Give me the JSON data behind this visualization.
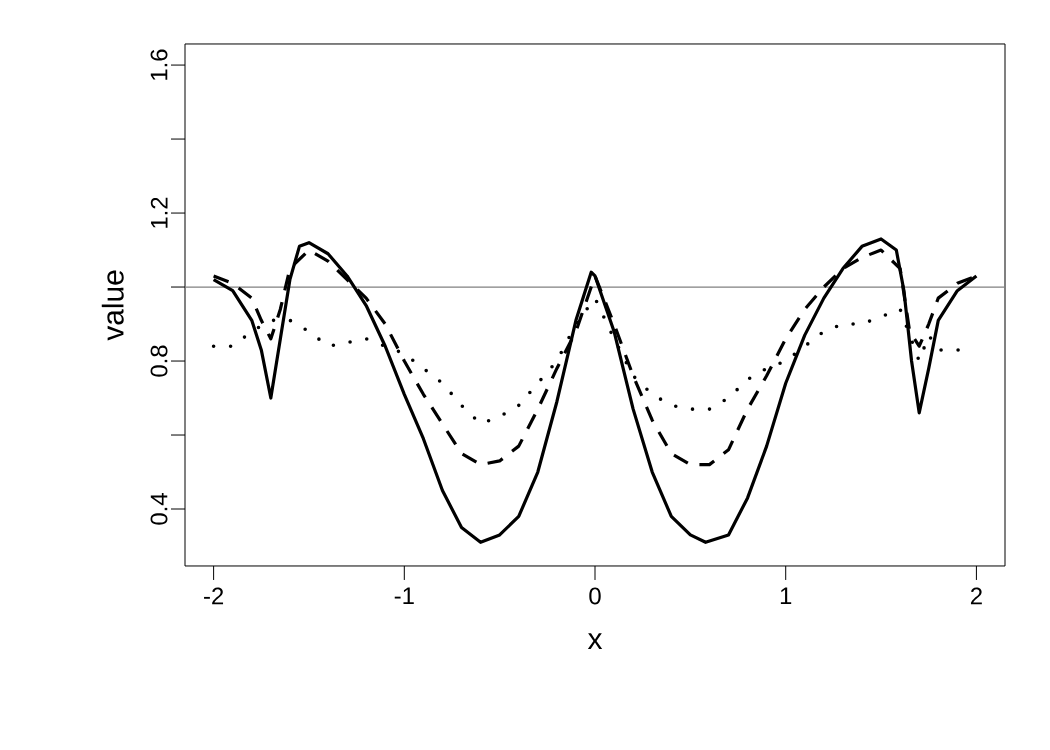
{
  "chart_data": {
    "type": "line",
    "xlabel": "x",
    "ylabel": "value",
    "xlim": [
      -2.15,
      2.15
    ],
    "ylim": [
      0.246,
      1.657
    ],
    "xticks": [
      -2,
      -1,
      0,
      1,
      2
    ],
    "yticks": [
      0.4,
      {
        "value": 0.6,
        "label": null
      },
      0.8,
      {
        "value": 1.0,
        "label": null
      },
      1.2,
      {
        "value": 1.4,
        "label": null
      },
      1.6
    ],
    "ref_lines": [
      {
        "axis": "y",
        "value": 1.0,
        "color": "#808080"
      }
    ],
    "series": [
      {
        "color": "#000000",
        "line_style": "solid",
        "x": [
          -2,
          -1.9,
          -1.8,
          -1.75,
          -1.7,
          -1.65,
          -1.6,
          -1.55,
          -1.5,
          -1.4,
          -1.3,
          -1.2,
          -1.1,
          -1.0,
          -0.9,
          -0.8,
          -0.7,
          -0.6,
          -0.5,
          -0.4,
          -0.3,
          -0.2,
          -0.1,
          -0.02,
          0,
          0.1,
          0.2,
          0.3,
          0.4,
          0.5,
          0.58,
          0.7,
          0.8,
          0.9,
          1.0,
          1.1,
          1.2,
          1.3,
          1.4,
          1.5,
          1.58,
          1.62,
          1.66,
          1.7,
          1.75,
          1.8,
          1.9,
          2.0
        ],
        "values": [
          1.02,
          0.99,
          0.91,
          0.83,
          0.7,
          0.86,
          1.02,
          1.11,
          1.12,
          1.09,
          1.03,
          0.95,
          0.84,
          0.71,
          0.59,
          0.45,
          0.35,
          0.31,
          0.33,
          0.38,
          0.5,
          0.69,
          0.91,
          1.04,
          1.03,
          0.88,
          0.67,
          0.5,
          0.38,
          0.33,
          0.31,
          0.33,
          0.43,
          0.57,
          0.74,
          0.87,
          0.97,
          1.05,
          1.11,
          1.13,
          1.1,
          0.99,
          0.8,
          0.66,
          0.78,
          0.91,
          0.99,
          1.03
        ]
      },
      {
        "color": "#000000",
        "line_style": "dashed",
        "x": [
          -2,
          -1.9,
          -1.8,
          -1.75,
          -1.7,
          -1.65,
          -1.6,
          -1.5,
          -1.4,
          -1.3,
          -1.2,
          -1.1,
          -1.0,
          -0.9,
          -0.8,
          -0.7,
          -0.6,
          -0.5,
          -0.4,
          -0.3,
          -0.2,
          -0.1,
          0,
          0.1,
          0.2,
          0.3,
          0.4,
          0.5,
          0.6,
          0.7,
          0.8,
          0.9,
          1.0,
          1.1,
          1.2,
          1.3,
          1.4,
          1.5,
          1.6,
          1.65,
          1.7,
          1.75,
          1.8,
          1.9,
          2.0
        ],
        "values": [
          1.03,
          1.01,
          0.97,
          0.91,
          0.86,
          0.94,
          1.05,
          1.1,
          1.07,
          1.02,
          0.97,
          0.9,
          0.8,
          0.71,
          0.63,
          0.55,
          0.52,
          0.53,
          0.57,
          0.67,
          0.78,
          0.88,
          1.03,
          0.9,
          0.76,
          0.64,
          0.55,
          0.52,
          0.52,
          0.56,
          0.67,
          0.76,
          0.86,
          0.94,
          1.0,
          1.05,
          1.08,
          1.1,
          1.05,
          0.88,
          0.84,
          0.9,
          0.97,
          1.01,
          1.03
        ]
      },
      {
        "color": "#000000",
        "line_style": "dotted",
        "x": [
          -2,
          -1.9,
          -1.8,
          -1.7,
          -1.6,
          -1.5,
          -1.4,
          -1.2,
          -1.1,
          -1.0,
          -0.9,
          -0.8,
          -0.7,
          -0.6,
          -0.5,
          -0.4,
          -0.3,
          -0.2,
          -0.1,
          0,
          0.1,
          0.2,
          0.3,
          0.4,
          0.5,
          0.6,
          0.7,
          0.8,
          0.9,
          1.0,
          1.1,
          1.2,
          1.3,
          1.4,
          1.5,
          1.6,
          1.7,
          1.75,
          1.8,
          1.93
        ],
        "values": [
          0.84,
          0.84,
          0.88,
          0.91,
          0.91,
          0.88,
          0.84,
          0.86,
          0.84,
          0.82,
          0.78,
          0.74,
          0.68,
          0.63,
          0.65,
          0.68,
          0.74,
          0.8,
          0.9,
          0.97,
          0.86,
          0.76,
          0.71,
          0.68,
          0.67,
          0.67,
          0.7,
          0.75,
          0.78,
          0.8,
          0.84,
          0.88,
          0.9,
          0.9,
          0.92,
          0.94,
          0.8,
          0.87,
          0.83,
          0.83
        ]
      }
    ]
  }
}
